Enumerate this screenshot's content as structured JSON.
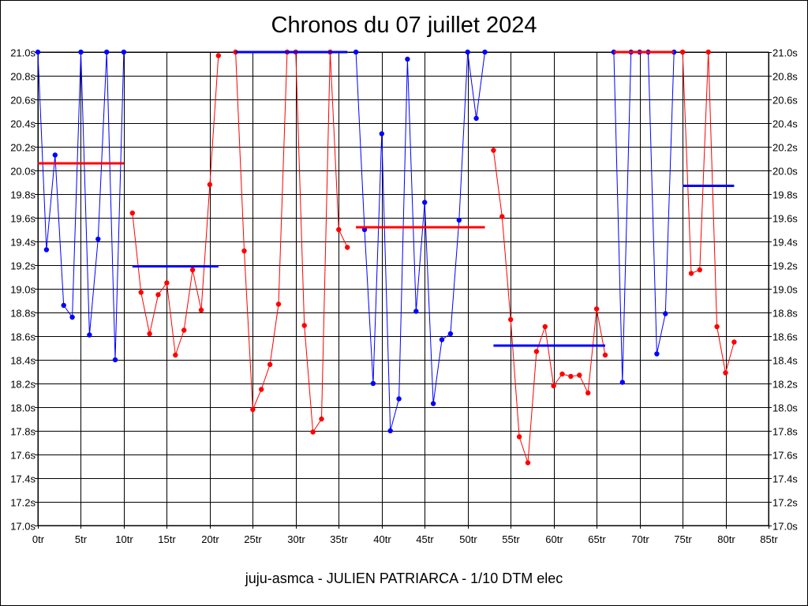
{
  "chart_data": {
    "type": "line",
    "title": "Chronos du 07 juillet 2024",
    "footer": "juju-asmca - JULIEN PATRIARCA - 1/10 DTM elec",
    "xlabel": "",
    "ylabel": "",
    "xlim": [
      0,
      85
    ],
    "ylim": [
      17.0,
      21.0
    ],
    "x_ticks": [
      "0tr",
      "5tr",
      "10tr",
      "15tr",
      "20tr",
      "25tr",
      "30tr",
      "35tr",
      "40tr",
      "45tr",
      "50tr",
      "55tr",
      "60tr",
      "65tr",
      "70tr",
      "75tr",
      "80tr",
      "85tr"
    ],
    "y_ticks": [
      "17.0s",
      "17.2s",
      "17.4s",
      "17.6s",
      "17.8s",
      "18.0s",
      "18.2s",
      "18.4s",
      "18.6s",
      "18.8s",
      "19.0s",
      "19.2s",
      "19.4s",
      "19.6s",
      "19.8s",
      "20.0s",
      "20.2s",
      "20.4s",
      "20.6s",
      "20.8s",
      "21.0s"
    ],
    "grid": true,
    "series": [
      {
        "color": "#0000ff",
        "x": [
          0,
          1,
          2,
          3,
          4,
          5,
          6,
          7,
          8,
          9,
          10
        ],
        "y": [
          21.0,
          19.33,
          20.13,
          18.86,
          18.76,
          21.0,
          18.61,
          19.42,
          21.0,
          18.4,
          21.0
        ],
        "mean": 20.06,
        "mean_color": "#ff0000"
      },
      {
        "color": "#ff0000",
        "x": [
          11,
          12,
          13,
          14,
          15,
          16,
          17,
          18,
          19,
          20,
          21
        ],
        "y": [
          19.64,
          18.97,
          18.62,
          18.95,
          19.05,
          18.44,
          18.65,
          19.16,
          18.82,
          19.88,
          20.97
        ],
        "mean": 19.19,
        "mean_color": "#0000ff"
      },
      {
        "color": "#ff0000",
        "x": [
          23,
          24,
          25,
          26,
          27,
          28,
          29,
          30,
          31,
          32,
          33,
          34,
          35,
          36
        ],
        "y": [
          21.0,
          19.32,
          17.98,
          18.15,
          18.36,
          18.87,
          21.0,
          21.0,
          18.69,
          17.79,
          17.9,
          21.0,
          19.5,
          19.35
        ],
        "mean": 21.0,
        "mean_color": "#0000ff"
      },
      {
        "color": "#0000ff",
        "x": [
          37,
          38,
          39,
          40,
          41,
          42,
          43,
          44,
          45,
          46,
          47,
          48,
          49,
          50,
          51,
          52
        ],
        "y": [
          21.0,
          19.5,
          18.2,
          20.31,
          17.8,
          18.07,
          20.94,
          18.81,
          19.73,
          18.03,
          18.57,
          18.62,
          19.58,
          21.0,
          20.44,
          21.0
        ],
        "mean": 19.52,
        "mean_color": "#ff0000"
      },
      {
        "color": "#ff0000",
        "x": [
          53,
          54,
          55,
          56,
          57,
          58,
          59,
          60,
          61,
          62,
          63,
          64,
          65,
          66
        ],
        "y": [
          20.17,
          19.61,
          18.74,
          17.75,
          17.53,
          18.47,
          18.68,
          18.18,
          18.28,
          18.26,
          18.27,
          18.12,
          18.83,
          18.44
        ],
        "mean": 18.52,
        "mean_color": "#0000ff"
      },
      {
        "color": "#0000ff",
        "x": [
          67,
          68,
          69,
          70,
          71,
          72,
          73,
          74
        ],
        "y": [
          21.0,
          18.21,
          21.0,
          21.0,
          21.0,
          18.45,
          18.79,
          21.0
        ],
        "mean": 21.0,
        "mean_color": "#ff0000"
      },
      {
        "color": "#ff0000",
        "x": [
          75,
          76,
          77,
          78,
          79,
          80,
          81
        ],
        "y": [
          21.0,
          19.13,
          19.16,
          21.0,
          18.68,
          18.29,
          18.55
        ],
        "mean": 19.87,
        "mean_color": "#0000ff"
      }
    ]
  }
}
